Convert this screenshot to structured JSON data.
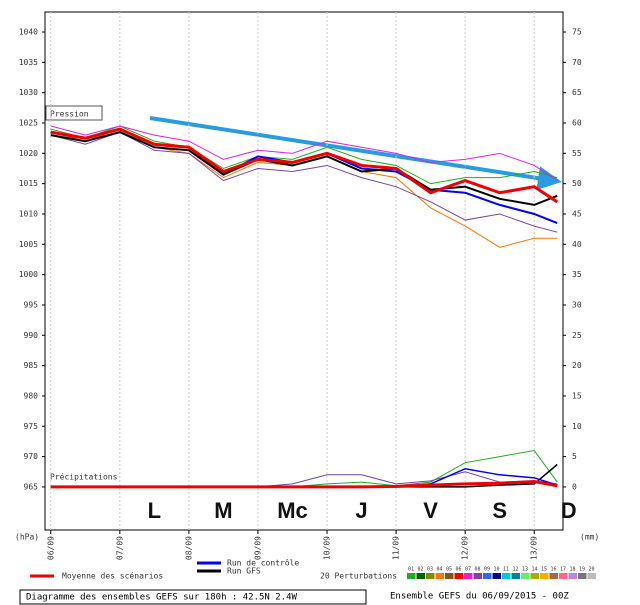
{
  "chart_data": {
    "type": "line",
    "pressure_label": "Pression",
    "precip_label": "Précipitations",
    "y_unit": "(hPa)",
    "y2_unit": "(mm)",
    "day_labels": [
      "L",
      "M",
      "Mc",
      "J",
      "V",
      "S",
      "D"
    ],
    "x": [
      0,
      12,
      24,
      36,
      48,
      60,
      72,
      84,
      96,
      108,
      120,
      132,
      144,
      156,
      168,
      176
    ],
    "xlim": [
      -2,
      178
    ],
    "xticks": [
      {
        "value": 0,
        "label": "06/09"
      },
      {
        "value": 24,
        "label": "07/09"
      },
      {
        "value": 48,
        "label": "08/09"
      },
      {
        "value": 72,
        "label": "09/09"
      },
      {
        "value": 96,
        "label": "10/09"
      },
      {
        "value": 120,
        "label": "11/09"
      },
      {
        "value": 144,
        "label": "12/09"
      },
      {
        "value": 168,
        "label": "13/09"
      }
    ],
    "ylim": [
      957.9,
      1043.3
    ],
    "yticks": [
      965,
      970,
      975,
      980,
      985,
      990,
      995,
      1000,
      1005,
      1010,
      1015,
      1020,
      1025,
      1030,
      1035,
      1040
    ],
    "y2lim": [
      -7.1,
      78.3
    ],
    "y2ticks": [
      0,
      5,
      10,
      15,
      20,
      25,
      30,
      35,
      40,
      45,
      50,
      55,
      60,
      65,
      70,
      75
    ],
    "grid": true,
    "series": [
      {
        "color": "#22aa22",
        "width": 1,
        "values": [
          1024,
          1022.5,
          1024.5,
          1022,
          1021,
          1017.5,
          1019.5,
          1019,
          1021,
          1019,
          1018,
          1015,
          1016,
          1016,
          1017,
          1016
        ]
      },
      {
        "color": "#ff7700",
        "width": 1,
        "values": [
          1023.5,
          1022,
          1024,
          1021,
          1020,
          1016,
          1018.5,
          1018,
          1019.5,
          1017,
          1016,
          1011,
          1008,
          1004.5,
          1006,
          1006
        ]
      },
      {
        "color": "#dd22dd",
        "width": 1,
        "values": [
          1024.5,
          1023,
          1024.5,
          1023,
          1022,
          1019,
          1020.5,
          1020,
          1022,
          1021,
          1020,
          1018.5,
          1019,
          1020,
          1018,
          1015.5
        ]
      },
      {
        "color": "#7744aa",
        "width": 1,
        "values": [
          1023,
          1021.5,
          1023.5,
          1020.5,
          1020,
          1015.5,
          1017.5,
          1017,
          1018,
          1016,
          1014.5,
          1012,
          1009,
          1010,
          1008,
          1007
        ]
      },
      {
        "color": "#22aa22",
        "width": 1,
        "axis": "y2",
        "values": [
          0,
          0,
          0.1,
          0,
          0,
          0,
          0,
          0,
          0.5,
          0.8,
          0.2,
          0.8,
          4,
          5,
          6,
          0.8
        ]
      },
      {
        "color": "#7744aa",
        "width": 1,
        "axis": "y2",
        "values": [
          0,
          0,
          0,
          0,
          0,
          0,
          0,
          0.5,
          2,
          2,
          0.5,
          1,
          2.5,
          0.8,
          1,
          0.5
        ]
      },
      {
        "name": "Run de contrôle",
        "color": "#0000ff",
        "width": 2,
        "values": [
          1023.5,
          1022.5,
          1024,
          1021.5,
          1021,
          1016.5,
          1019.5,
          1018.5,
          1020,
          1017.5,
          1017,
          1014,
          1013.5,
          1011.5,
          1010,
          1008.5
        ]
      },
      {
        "name": "Run GFS",
        "color": "#000000",
        "width": 2,
        "values": [
          1023,
          1022,
          1023.5,
          1021,
          1020.5,
          1016.5,
          1019,
          1018,
          1019.5,
          1017,
          1017.5,
          1014,
          1014.5,
          1012.5,
          1011.5,
          1013
        ]
      },
      {
        "name": "Moyenne des scénarios",
        "color": "#ee0000",
        "width": 3,
        "values": [
          1023.5,
          1022.5,
          1024,
          1021.5,
          1021,
          1017,
          1019,
          1018.5,
          1020,
          1018,
          1017.5,
          1013.5,
          1015.5,
          1013.5,
          1014.5,
          1012
        ]
      },
      {
        "color": "#0000ff",
        "width": 1.5,
        "axis": "y2",
        "values": [
          0,
          0,
          0,
          0,
          0,
          0,
          0,
          0,
          0,
          0,
          0,
          0.5,
          3,
          2,
          1.5,
          0.3
        ]
      },
      {
        "color": "#000000",
        "width": 1.5,
        "axis": "y2",
        "values": [
          0,
          0,
          0,
          0,
          0,
          0,
          0,
          0,
          0,
          0,
          0,
          0,
          0,
          0.3,
          0.5,
          3.7
        ]
      },
      {
        "color": "#ee0000",
        "width": 3,
        "axis": "y2",
        "values": [
          0,
          0,
          0,
          0,
          0,
          0,
          0,
          0,
          0,
          0,
          0.1,
          0.3,
          0.5,
          0.6,
          0.9,
          0.2
        ]
      }
    ],
    "legend_items": [
      6,
      7,
      8
    ],
    "perturbations_title": "20 Perturbations",
    "perturbations": [
      {
        "label": "01",
        "color": "#22aa22"
      },
      {
        "label": "02",
        "color": "#006600"
      },
      {
        "label": "03",
        "color": "#888800"
      },
      {
        "label": "04",
        "color": "#ff7700"
      },
      {
        "label": "05",
        "color": "#885522"
      },
      {
        "label": "06",
        "color": "#ff0000"
      },
      {
        "label": "07",
        "color": "#dd22dd"
      },
      {
        "label": "08",
        "color": "#7744aa"
      },
      {
        "label": "09",
        "color": "#3366ff"
      },
      {
        "label": "10",
        "color": "#000088"
      },
      {
        "label": "11",
        "color": "#00cccc"
      },
      {
        "label": "12",
        "color": "#008888"
      },
      {
        "label": "13",
        "color": "#66ee66"
      },
      {
        "label": "14",
        "color": "#aaaa00"
      },
      {
        "label": "15",
        "color": "#ffaa00"
      },
      {
        "label": "16",
        "color": "#aa6644"
      },
      {
        "label": "17",
        "color": "#ff6688"
      },
      {
        "label": "18",
        "color": "#bb88dd"
      },
      {
        "label": "19",
        "color": "#777777"
      },
      {
        "label": "20",
        "color": "#bbbbbb"
      }
    ],
    "footer_left": "Diagramme des ensembles GEFS sur 180h : 42.5N 2.4W",
    "footer_right": "Ensemble GEFS du 06/09/2015 - 00Z"
  }
}
